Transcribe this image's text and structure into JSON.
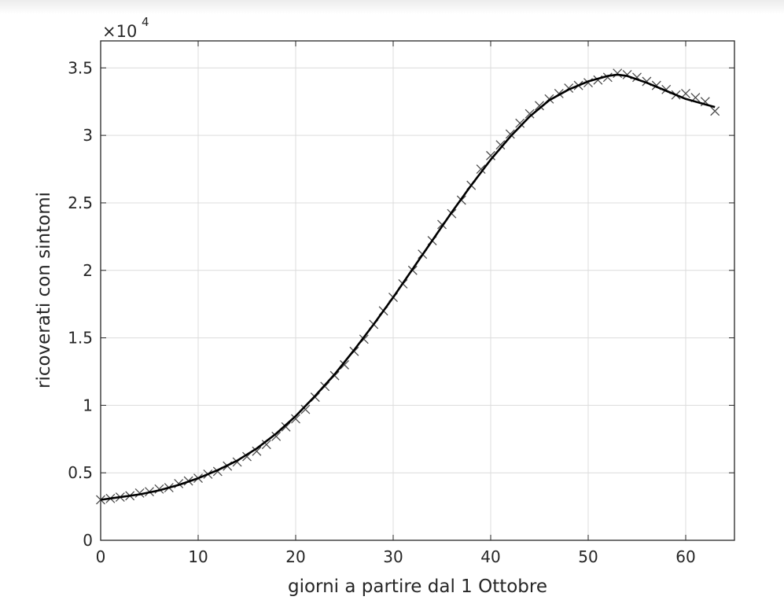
{
  "chart_data": {
    "type": "scatter",
    "xlabel": "giorni a partire dal 1 Ottobre",
    "ylabel": "ricoverati con sintomi",
    "y_exponent_label": "×10",
    "y_exponent": "4",
    "xlim": [
      0,
      65
    ],
    "ylim": [
      0,
      3.7
    ],
    "xticks": [
      0,
      10,
      20,
      30,
      40,
      50,
      60
    ],
    "yticks": [
      0,
      0.5,
      1,
      1.5,
      2,
      2.5,
      3,
      3.5
    ],
    "xtick_labels": [
      "0",
      "10",
      "20",
      "30",
      "40",
      "50",
      "60"
    ],
    "ytick_labels": [
      "0",
      "0.5",
      "1",
      "1.5",
      "2",
      "2.5",
      "3",
      "3.5"
    ],
    "grid": true,
    "box": true,
    "series": [
      {
        "style": "markers-x",
        "color": "#4d4d4d",
        "x": [
          0,
          1,
          2,
          3,
          4,
          5,
          6,
          7,
          8,
          9,
          10,
          11,
          12,
          13,
          14,
          15,
          16,
          17,
          18,
          19,
          20,
          21,
          22,
          23,
          24,
          25,
          26,
          27,
          28,
          29,
          30,
          31,
          32,
          33,
          34,
          35,
          36,
          37,
          38,
          39,
          40,
          41,
          42,
          43,
          44,
          45,
          46,
          47,
          48,
          49,
          50,
          51,
          52,
          53,
          54,
          55,
          56,
          57,
          58,
          59,
          60,
          61,
          62,
          63
        ],
        "y": [
          0.3,
          0.31,
          0.32,
          0.33,
          0.35,
          0.36,
          0.38,
          0.39,
          0.42,
          0.44,
          0.46,
          0.49,
          0.51,
          0.55,
          0.58,
          0.62,
          0.66,
          0.71,
          0.77,
          0.84,
          0.9,
          0.97,
          1.06,
          1.14,
          1.22,
          1.3,
          1.4,
          1.49,
          1.6,
          1.7,
          1.8,
          1.9,
          2.0,
          2.12,
          2.22,
          2.34,
          2.42,
          2.52,
          2.63,
          2.75,
          2.85,
          2.93,
          3.01,
          3.09,
          3.16,
          3.22,
          3.27,
          3.31,
          3.35,
          3.37,
          3.39,
          3.41,
          3.43,
          3.46,
          3.45,
          3.43,
          3.4,
          3.37,
          3.34,
          3.3,
          3.31,
          3.28,
          3.25,
          3.18
        ]
      },
      {
        "style": "line",
        "color": "#000000",
        "x": [
          0,
          2,
          4,
          6,
          8,
          10,
          12,
          14,
          16,
          18,
          20,
          22,
          24,
          26,
          28,
          30,
          32,
          34,
          36,
          38,
          40,
          42,
          44,
          46,
          48,
          50,
          52,
          53,
          54,
          56,
          58,
          60,
          62,
          63
        ],
        "y": [
          0.3,
          0.32,
          0.34,
          0.37,
          0.41,
          0.46,
          0.52,
          0.59,
          0.68,
          0.79,
          0.92,
          1.07,
          1.23,
          1.41,
          1.6,
          1.8,
          2.01,
          2.22,
          2.43,
          2.63,
          2.82,
          2.99,
          3.14,
          3.26,
          3.34,
          3.4,
          3.44,
          3.45,
          3.44,
          3.39,
          3.33,
          3.27,
          3.23,
          3.21
        ]
      }
    ]
  }
}
